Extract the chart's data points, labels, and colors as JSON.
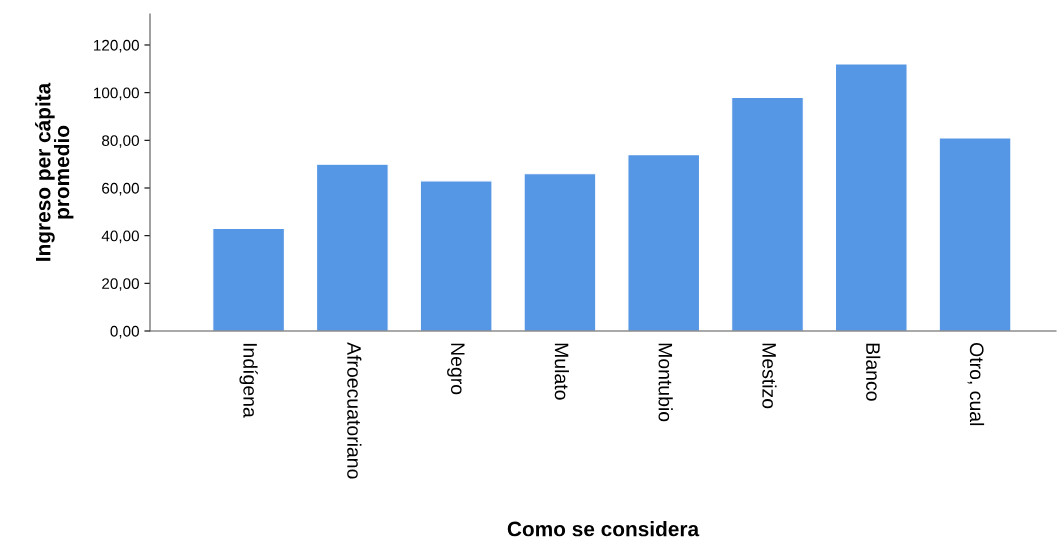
{
  "chart_data": {
    "type": "bar",
    "xlabel": "Como se considera",
    "ylabel": "Ingreso per cápita\npromedio",
    "categories": [
      "Indígena",
      "Afroecuatoriano",
      "Negro",
      "Mulato",
      "Montubio",
      "Mestizo",
      "Blanco",
      "Otro, cual"
    ],
    "values": [
      43,
      70,
      63,
      66,
      74,
      98,
      112,
      81
    ],
    "color": "#5596e5",
    "ylim": [
      0,
      133
    ],
    "yticks": [
      {
        "value": 0,
        "label": "0,00"
      },
      {
        "value": 20,
        "label": "20,00"
      },
      {
        "value": 40,
        "label": "40,00"
      },
      {
        "value": 60,
        "label": "60,00"
      },
      {
        "value": 80,
        "label": "80,00"
      },
      {
        "value": 100,
        "label": "100,00"
      },
      {
        "value": 120,
        "label": "120,00"
      }
    ],
    "grid": false
  }
}
